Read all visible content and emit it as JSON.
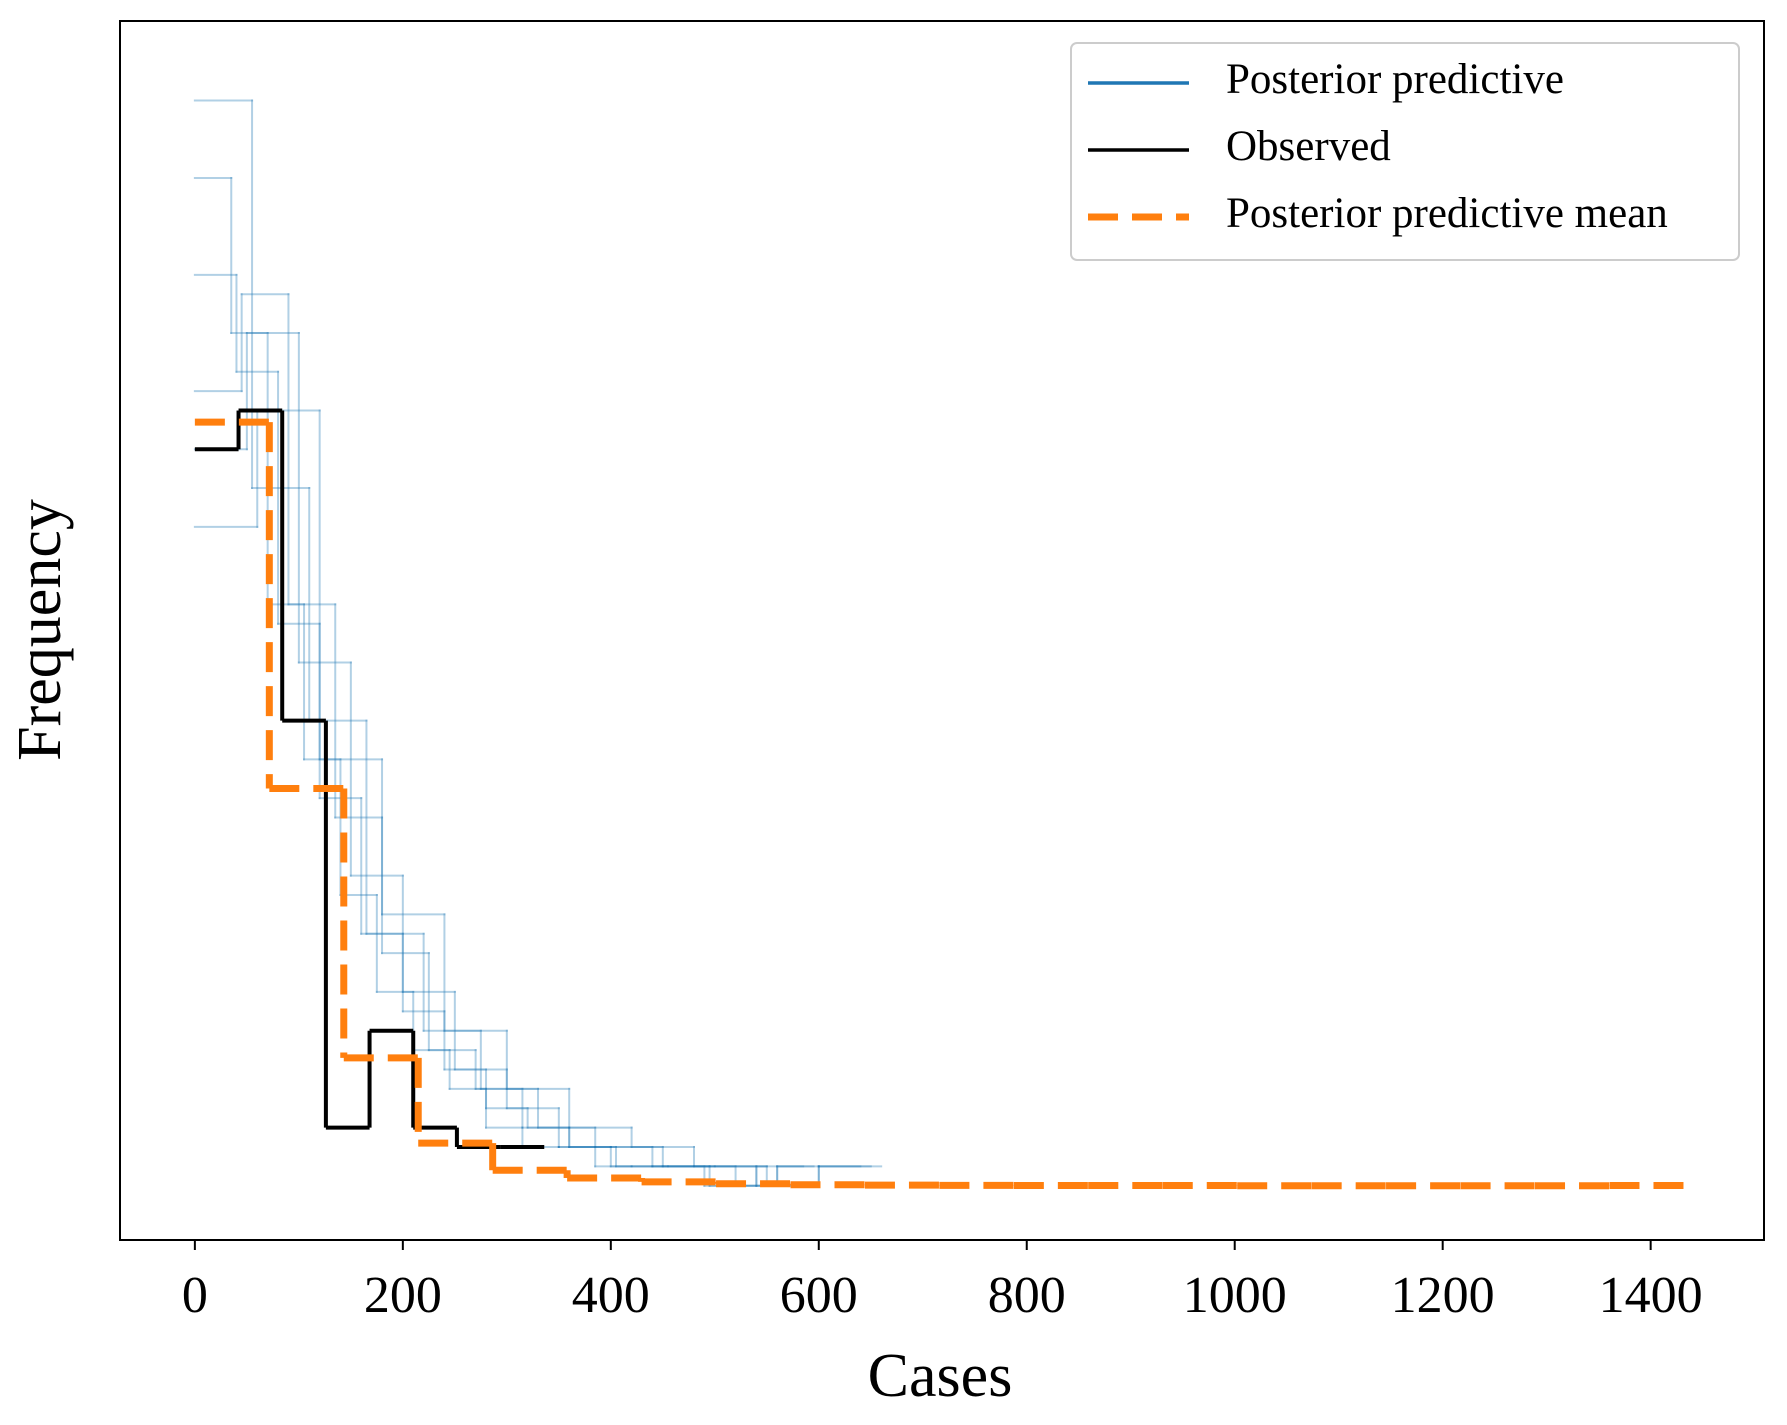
{
  "chart_data": {
    "type": "histogram-step",
    "x_label": "Cases",
    "y_label": "Frequency",
    "xlim": [
      -72,
      1509
    ],
    "xticks": [
      0,
      200,
      400,
      600,
      800,
      1000,
      1200,
      1400
    ],
    "ylim": [
      -2.8,
      60.1
    ],
    "legend": "upper right",
    "grid": false,
    "series": [
      {
        "name": "Posterior predictive",
        "color": "#1f77b4",
        "samples": [
          {
            "bins": [
              0,
              35,
              70,
              105,
              140,
              175,
              210,
              245,
              280,
              315,
              350,
              385,
              420,
              455,
              490,
              525,
              560,
              595
            ],
            "values": [
              52,
              44,
              30,
              22,
              15,
              10,
              7,
              5,
              3,
              2,
              2,
              1,
              1,
              1,
              0,
              0,
              1
            ]
          },
          {
            "bins": [
              0,
              40,
              80,
              120,
              160,
              200,
              240,
              280,
              320,
              360,
              400,
              440,
              480,
              520,
              560,
              600,
              640
            ],
            "values": [
              47,
              42,
              29,
              20,
              13,
              9,
              6,
              4,
              3,
              2,
              1,
              1,
              1,
              0,
              1,
              1
            ]
          },
          {
            "bins": [
              0,
              45,
              90,
              135,
              180,
              225,
              270,
              315,
              360,
              405,
              450,
              495,
              540,
              585
            ],
            "values": [
              41,
              46,
              30,
              19,
              12,
              7,
              5,
              3,
              2,
              1,
              1,
              0,
              1
            ]
          },
          {
            "bins": [
              0,
              50,
              100,
              150,
              200,
              250,
              300,
              350,
              400,
              450,
              500,
              550,
              600,
              650
            ],
            "values": [
              38,
              44,
              27,
              16,
              10,
              6,
              4,
              2,
              2,
              1,
              1,
              0,
              1
            ]
          },
          {
            "bins": [
              0,
              55,
              110,
              165,
              220,
              275,
              330,
              385,
              440,
              495,
              550
            ],
            "values": [
              56,
              36,
              24,
              13,
              8,
              5,
              3,
              2,
              1,
              1
            ]
          },
          {
            "bins": [
              0,
              60,
              120,
              180,
              240,
              300,
              360,
              420,
              480,
              540,
              600,
              660
            ],
            "values": [
              34,
              40,
              22,
              14,
              8,
              5,
              3,
              2,
              1,
              0,
              1
            ]
          }
        ]
      },
      {
        "name": "Observed",
        "color": "#000000",
        "bins": [
          0,
          42,
          84,
          126,
          168,
          210,
          252,
          294,
          336
        ],
        "values": [
          38,
          40,
          24,
          3,
          8,
          3,
          2,
          2
        ]
      },
      {
        "name": "Posterior predictive mean",
        "color": "#ff7f0e",
        "linestyle": "dashed",
        "bins": [
          0,
          71.6,
          143.2,
          214.8,
          286.4,
          358,
          429.6,
          501.2,
          572.8,
          644.4,
          716,
          787.6,
          859.2,
          930.8,
          1002.4,
          1074,
          1145.6,
          1217.2,
          1288.8,
          1360.4,
          1432
        ],
        "values": [
          39.4,
          20.5,
          6.6,
          2.2,
          0.8,
          0.4,
          0.2,
          0.1,
          0.05,
          0.03,
          0.02,
          0.01,
          0.01,
          0.01,
          0,
          0,
          0,
          0,
          0,
          0.01
        ]
      }
    ]
  }
}
